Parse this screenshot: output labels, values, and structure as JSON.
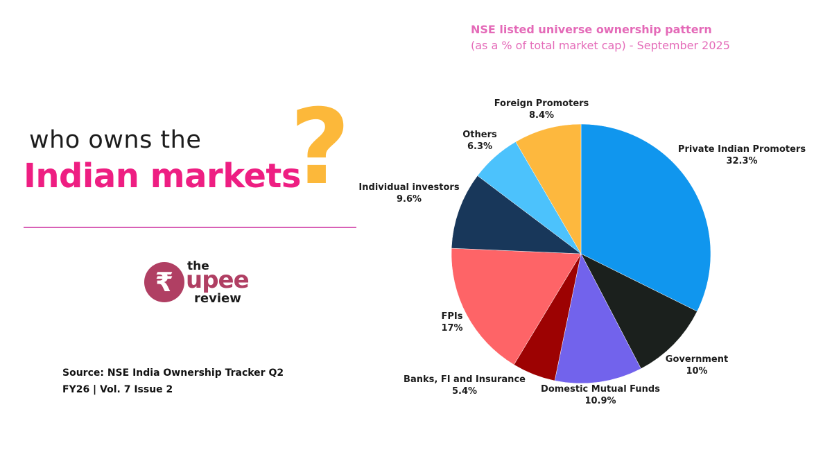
{
  "headline": {
    "line1": "who owns the",
    "line2": "Indian markets",
    "mark": "?"
  },
  "logo": {
    "symbol": "₹",
    "the": "the",
    "upee": "upee",
    "review": "review"
  },
  "source": "Source: NSE India Ownership Tracker Q2 FY26 | Vol. 7 Issue 2",
  "colors": {
    "headline_pink": "#ee1e82",
    "question_mark": "#fcb83a",
    "title_pink": "#e46ab8",
    "logo_maroon": "#b03f63"
  },
  "chart_data": {
    "type": "pie",
    "title": "NSE listed universe ownership pattern",
    "subtitle": "(as a % of total market cap) - September 2025",
    "slices": [
      {
        "name": "Private Indian Promoters",
        "value": 32.3,
        "label": "32.3%",
        "color": "#1096ee"
      },
      {
        "name": "Government",
        "value": 10,
        "label": "10%",
        "color": "#1b201d"
      },
      {
        "name": "Domestic Mutual Funds",
        "value": 10.9,
        "label": "10.9%",
        "color": "#7263ec"
      },
      {
        "name": "Banks, FI and Insurance",
        "value": 5.4,
        "label": "5.4%",
        "color": "#9d0202"
      },
      {
        "name": "FPIs",
        "value": 17,
        "label": "17%",
        "color": "#fe6467"
      },
      {
        "name": "Individual investors",
        "value": 9.6,
        "label": "9.6%",
        "color": "#18375a"
      },
      {
        "name": "Others",
        "value": 6.3,
        "label": "6.3%",
        "color": "#4cc2fc"
      },
      {
        "name": "Foreign Promoters",
        "value": 8.4,
        "label": "8.4%",
        "color": "#fdb83e"
      }
    ]
  }
}
